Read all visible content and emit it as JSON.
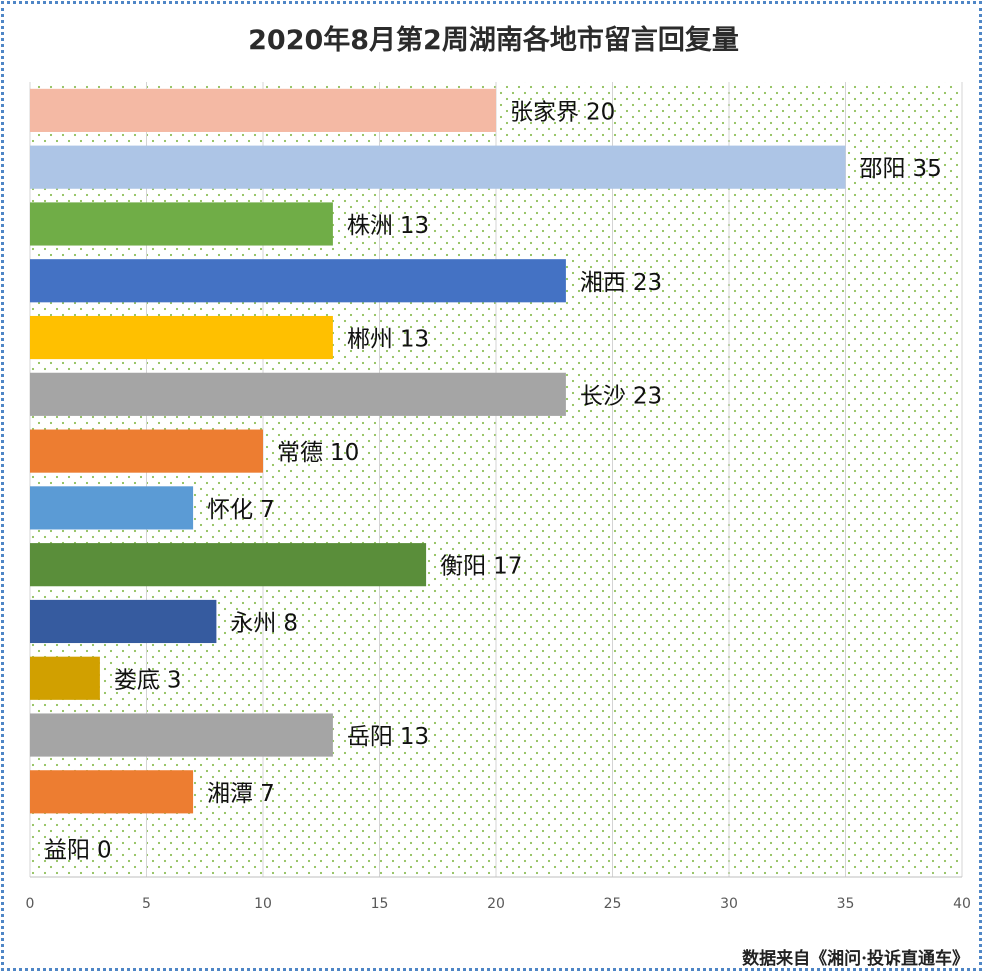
{
  "chart_data": {
    "type": "bar",
    "orientation": "horizontal",
    "title": "2020年8月第2周湖南各地市留言回复量",
    "xlim": [
      0,
      40
    ],
    "x_ticks": [
      0,
      5,
      10,
      15,
      20,
      25,
      30,
      35,
      40
    ],
    "grid": "vertical",
    "bars": [
      {
        "label": "张家界",
        "value": 20,
        "color": "#f4b9a4"
      },
      {
        "label": "邵阳",
        "value": 35,
        "color": "#adc5e6"
      },
      {
        "label": "株洲",
        "value": 13,
        "color": "#70ad47"
      },
      {
        "label": "湘西",
        "value": 23,
        "color": "#4472c4"
      },
      {
        "label": "郴州",
        "value": 13,
        "color": "#ffc000"
      },
      {
        "label": "长沙",
        "value": 23,
        "color": "#a5a5a5"
      },
      {
        "label": "常德",
        "value": 10,
        "color": "#ed7d31"
      },
      {
        "label": "怀化",
        "value": 7,
        "color": "#5b9bd5"
      },
      {
        "label": "衡阳",
        "value": 17,
        "color": "#5a8e3a"
      },
      {
        "label": "永州",
        "value": 8,
        "color": "#365b9f"
      },
      {
        "label": "娄底",
        "value": 3,
        "color": "#d1a000"
      },
      {
        "label": "岳阳",
        "value": 13,
        "color": "#a5a5a5"
      },
      {
        "label": "湘潭",
        "value": 7,
        "color": "#ed7d31"
      },
      {
        "label": "益阳",
        "value": 0,
        "color": "#ffffff"
      }
    ]
  },
  "source": "数据来自《湘问·投诉直通车》"
}
